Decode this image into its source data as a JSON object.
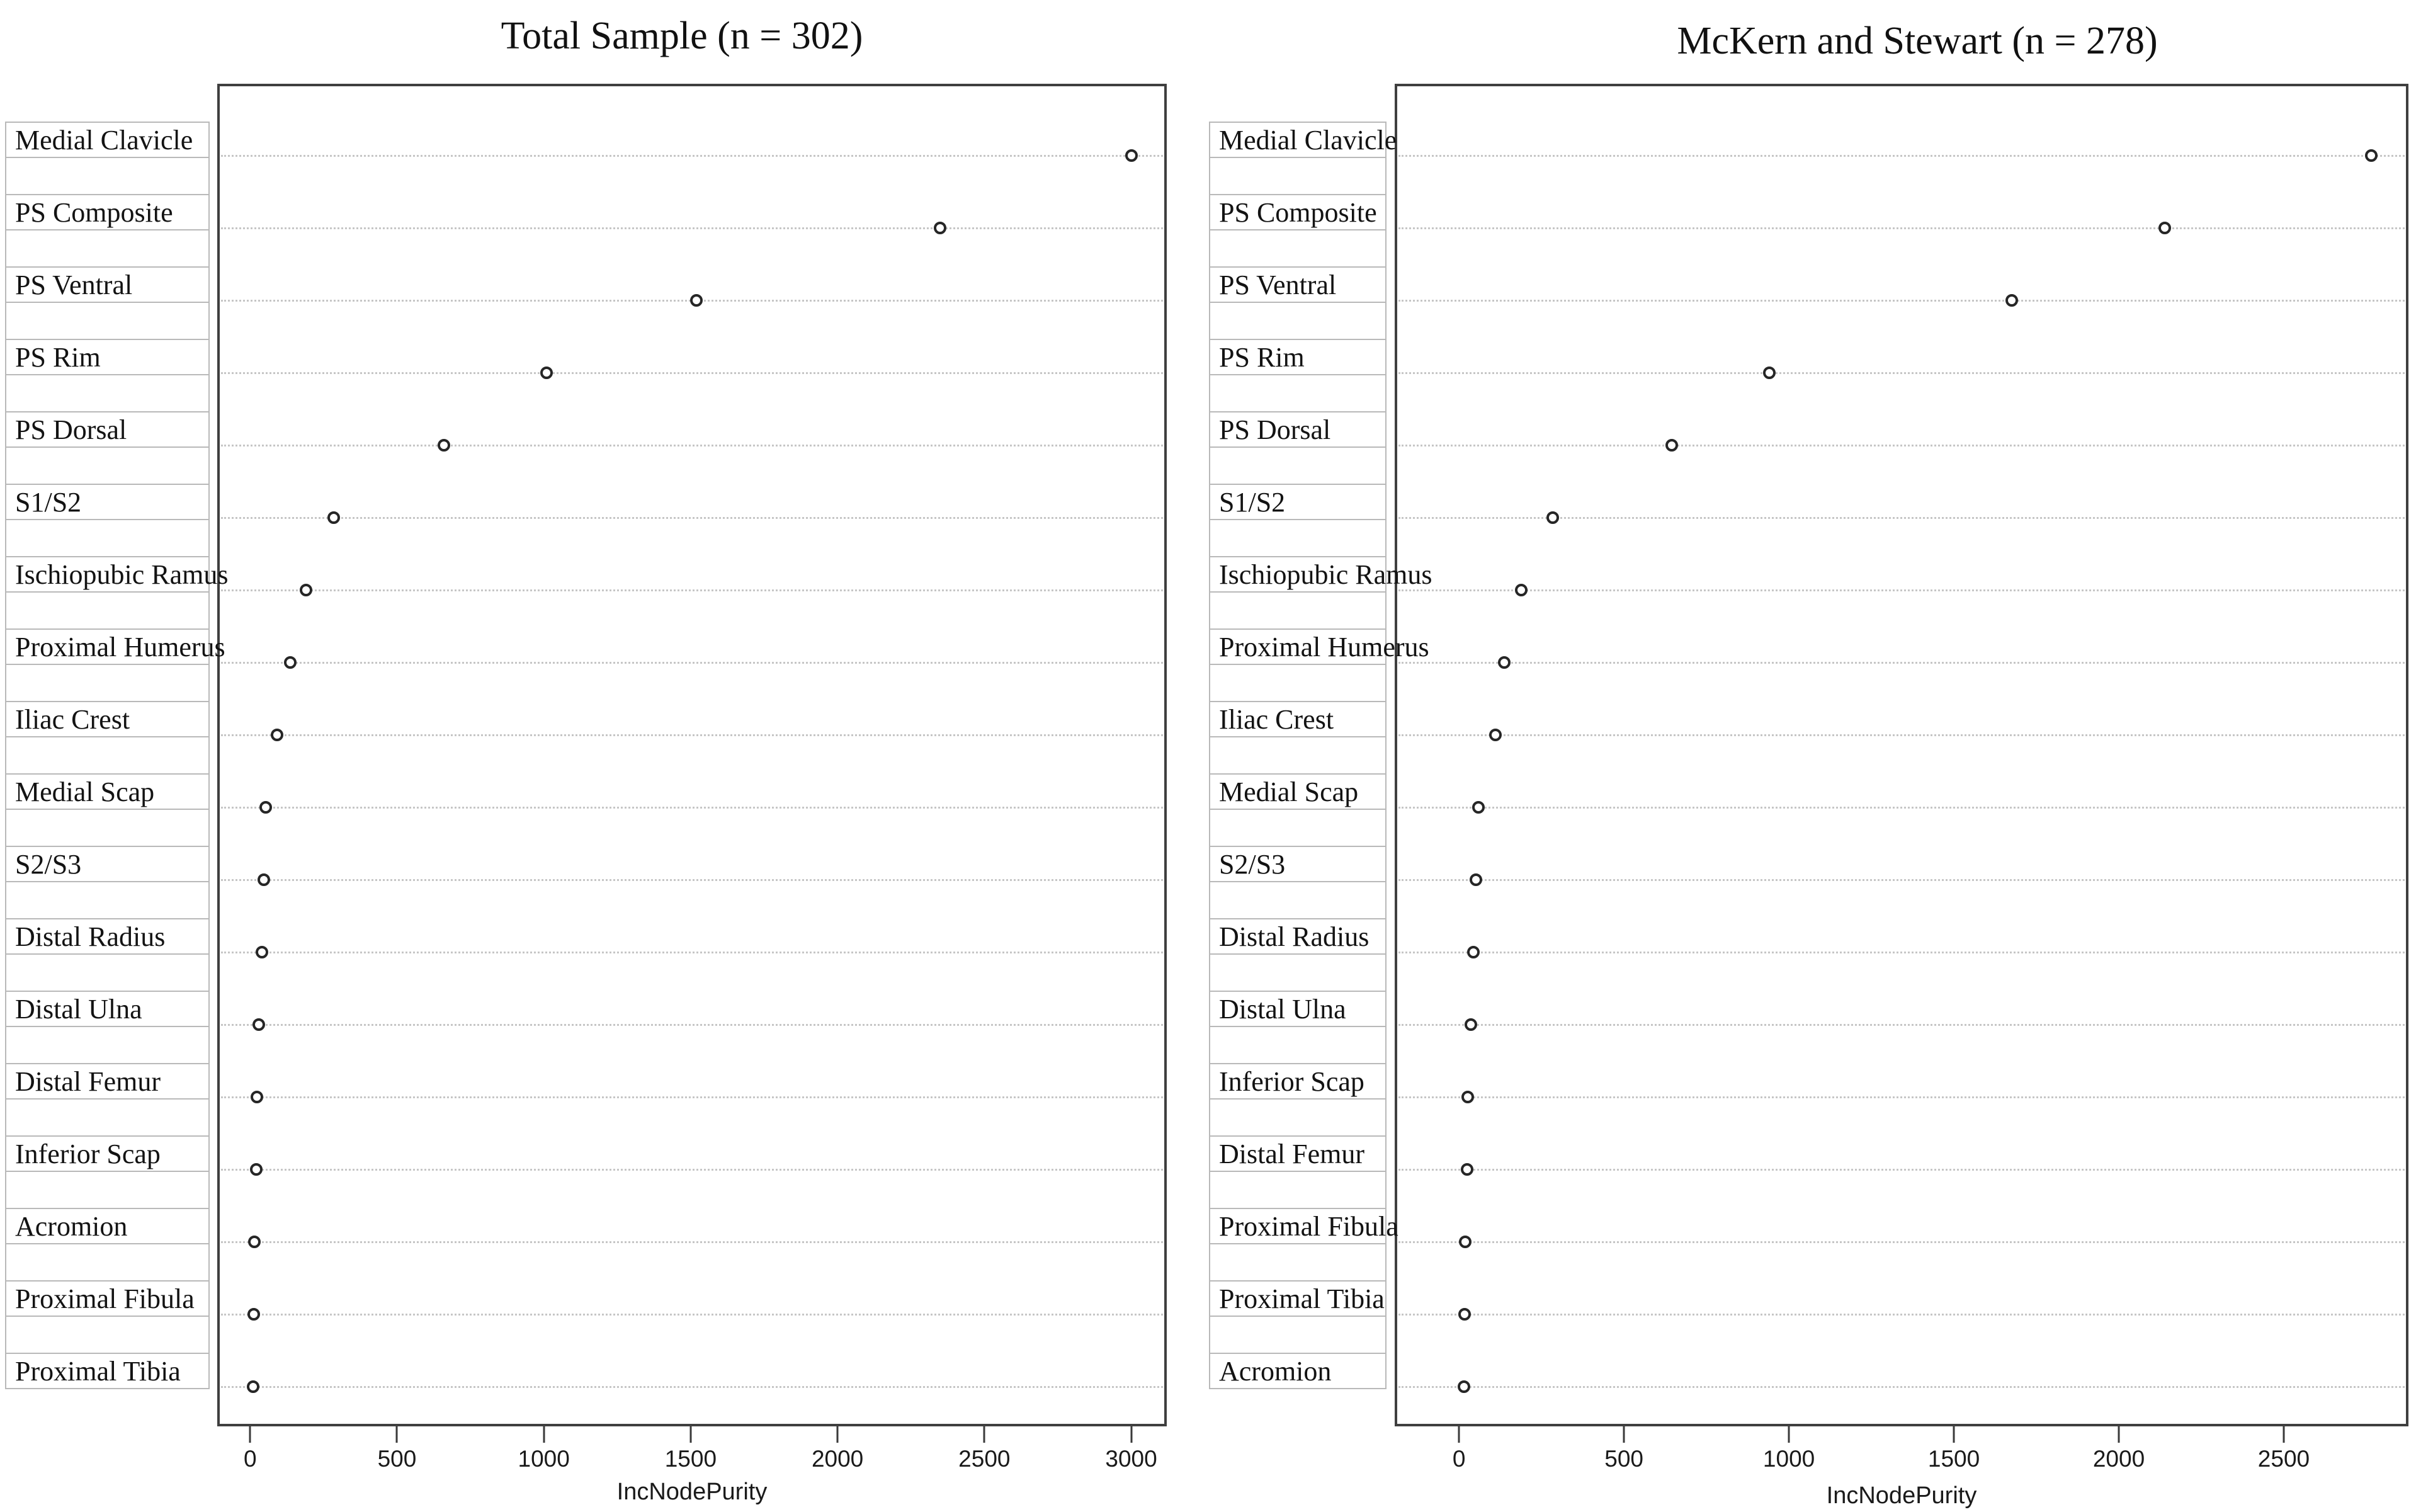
{
  "figure": {
    "background": "#ffffff",
    "ink": "#131313",
    "grid_color": "#c6c6c6",
    "plot_border_color": "#3f3f3f",
    "label_box_border_color": "#b9b9b9",
    "point_ring_color": "#262626"
  },
  "chart_data": [
    {
      "type": "scatter",
      "title": "Total Sample (n = 302)",
      "xlabel": "IncNodePurity",
      "grid": "horizontal-dotted",
      "legend_position": "none",
      "xlim": [
        -112,
        3121
      ],
      "xticks": [
        0,
        500,
        1000,
        1500,
        2000,
        2500,
        3000
      ],
      "categories": [
        "Medial Clavicle",
        "PS Composite",
        "PS Ventral",
        "PS Rim",
        "PS Dorsal",
        "S1/S2",
        "Ischiopubic Ramus",
        "Proximal Humerus",
        "Iliac Crest",
        "Medial Scap",
        "S2/S3",
        "Distal Radius",
        "Distal Ulna",
        "Distal Femur",
        "Inferior Scap",
        "Acromion",
        "Proximal Fibula",
        "Proximal Tibia"
      ],
      "values": [
        3000,
        2350,
        1520,
        1010,
        660,
        285,
        190,
        137,
        92,
        54,
        47,
        41,
        30,
        22,
        21,
        14,
        13,
        10
      ]
    },
    {
      "type": "scatter",
      "title": "McKern and Stewart (n = 278)",
      "xlabel": "IncNodePurity",
      "grid": "horizontal-dotted",
      "legend_position": "none",
      "xlim": [
        -195,
        2878
      ],
      "xticks": [
        0,
        500,
        1000,
        1500,
        2000,
        2500
      ],
      "categories": [
        "Medial Clavicle",
        "PS Composite",
        "PS Ventral",
        "PS Rim",
        "PS Dorsal",
        "S1/S2",
        "Ischiopubic Ramus",
        "Proximal Humerus",
        "Iliac Crest",
        "Medial Scap",
        "S2/S3",
        "Distal Radius",
        "Distal Ulna",
        "Inferior Scap",
        "Distal Femur",
        "Proximal Fibula",
        "Proximal Tibia",
        "Acromion"
      ],
      "values": [
        2765,
        2140,
        1675,
        940,
        645,
        285,
        188,
        137,
        110,
        58,
        52,
        44,
        36,
        27,
        24,
        18,
        17,
        15
      ]
    }
  ]
}
